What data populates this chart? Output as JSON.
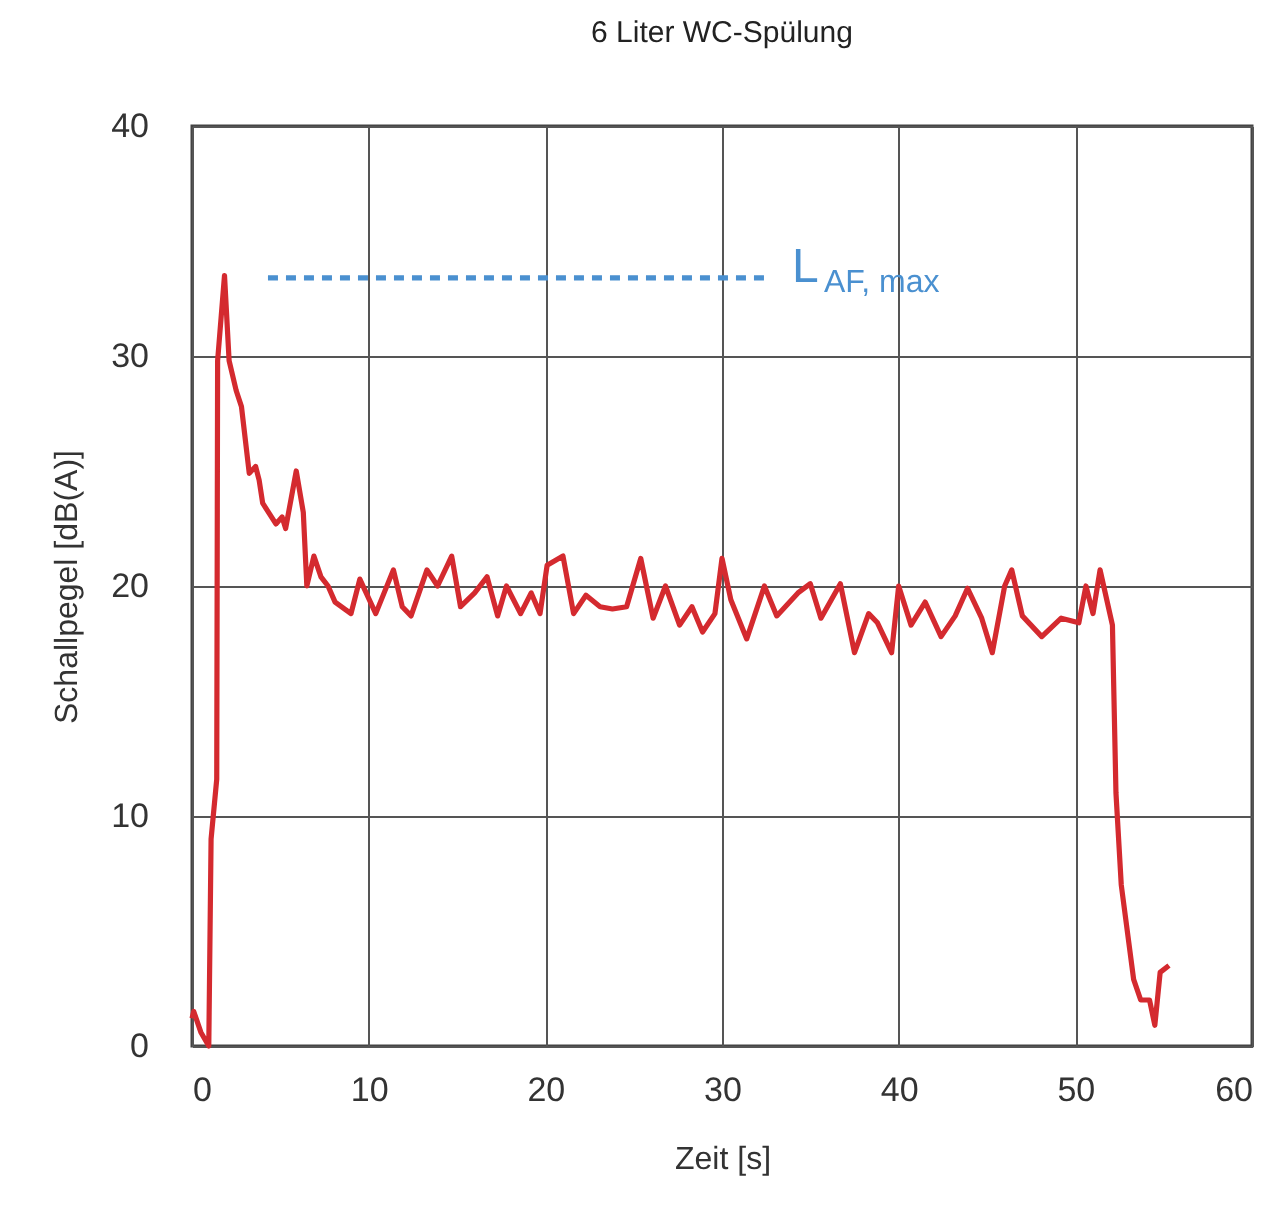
{
  "chart_data": {
    "type": "line",
    "title": "6 Liter WC-Spülung",
    "xlabel": "Zeit [s]",
    "ylabel": "Schallpegel [dB(A)]",
    "xlim": [
      0,
      60
    ],
    "xticks": [
      0,
      10,
      20,
      30,
      40,
      50,
      60
    ],
    "ylim": [
      0,
      40
    ],
    "yticks": [
      0,
      10,
      20,
      30,
      40
    ],
    "grid": true,
    "marker": "none",
    "series": [
      {
        "color": "#d42a2f",
        "line_style": "solid",
        "x": [
          0,
          0.1,
          0.5,
          0.95,
          1.08,
          1.4,
          1.45,
          1.84,
          2.1,
          2.5,
          2.8,
          3.24,
          3.6,
          3.8,
          4.0,
          4.75,
          5.1,
          5.3,
          5.9,
          6.3,
          6.5,
          6.9,
          7.3,
          7.7,
          8.1,
          9.0,
          9.5,
          10.4,
          11.4,
          11.9,
          12.4,
          13.3,
          13.9,
          14.7,
          15.2,
          16.0,
          16.7,
          17.3,
          17.8,
          18.6,
          19.2,
          19.7,
          20.1,
          21.0,
          21.6,
          22.3,
          23.1,
          23.8,
          24.6,
          25.4,
          26.1,
          26.8,
          27.6,
          28.3,
          28.9,
          29.6,
          30.0,
          30.5,
          31.4,
          32.4,
          33.1,
          34.3,
          35.0,
          35.6,
          36.7,
          37.5,
          38.3,
          38.8,
          39.6,
          40.0,
          40.7,
          41.5,
          42.4,
          43.2,
          43.9,
          44.7,
          45.3,
          46.0,
          46.4,
          47.0,
          48.1,
          49.2,
          50.2,
          50.6,
          51.0,
          51.4,
          52.1,
          52.3,
          52.6,
          53.3,
          53.7,
          54.2,
          54.5,
          54.8,
          55.3
        ],
        "values": [
          1.2,
          1.5,
          0.6,
          0,
          9.0,
          11.6,
          29.8,
          33.5,
          29.8,
          28.5,
          27.8,
          24.9,
          25.2,
          24.6,
          23.6,
          22.7,
          23.0,
          22.5,
          25.0,
          23.2,
          20.0,
          21.3,
          20.4,
          20.0,
          19.3,
          18.8,
          20.3,
          18.8,
          20.7,
          19.1,
          18.7,
          20.7,
          20.0,
          21.3,
          19.1,
          19.7,
          20.4,
          18.7,
          20.0,
          18.8,
          19.7,
          18.8,
          20.9,
          21.3,
          18.8,
          19.6,
          19.1,
          19.0,
          19.1,
          21.2,
          18.6,
          20.0,
          18.3,
          19.1,
          18.0,
          18.8,
          21.2,
          19.4,
          17.7,
          20.0,
          18.7,
          19.7,
          20.1,
          18.6,
          20.1,
          17.1,
          18.8,
          18.4,
          17.1,
          20.0,
          18.3,
          19.3,
          17.8,
          18.7,
          19.9,
          18.6,
          17.1,
          20.0,
          20.7,
          18.7,
          17.8,
          18.6,
          18.4,
          20.0,
          18.8,
          20.7,
          18.3,
          11.0,
          7.0,
          2.9,
          2.0,
          2.0,
          0.9,
          3.2,
          3.5
        ]
      },
      {
        "name": "L$_{AF, max}$",
        "color": "#4a90d0",
        "line_style": "dashed",
        "x": [
          4.3,
          32.6
        ],
        "values": [
          33.4,
          33.4
        ]
      }
    ]
  }
}
